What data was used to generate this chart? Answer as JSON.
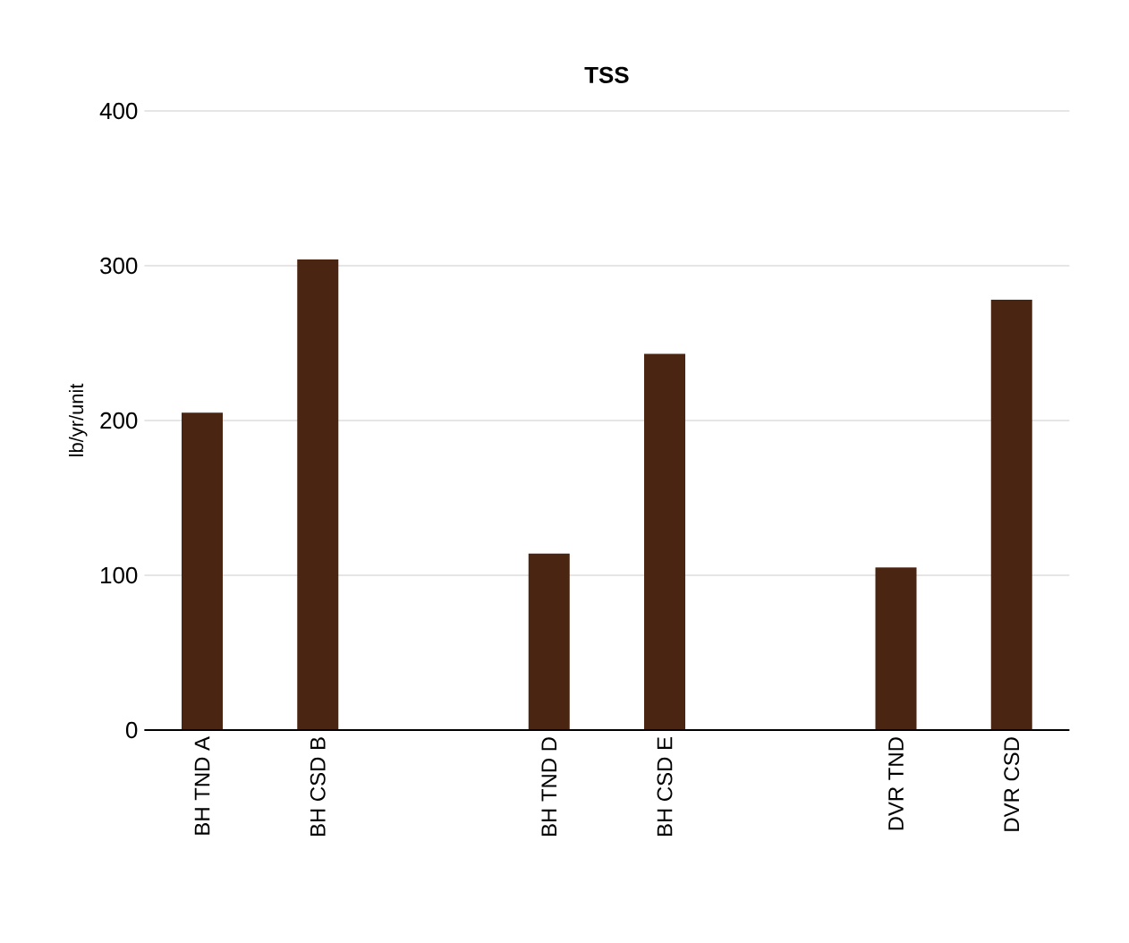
{
  "chart_data": {
    "type": "bar",
    "title": "**TSS**",
    "ylabel": "lb/yr/unit",
    "categories": [
      "BH TND A",
      "BH CSD B",
      null,
      "BH TND D",
      "BH CSD E",
      null,
      "DVR TND",
      "DVR CSD"
    ],
    "values": [
      205,
      304,
      null,
      114,
      243,
      null,
      105,
      278
    ],
    "color": "#4a2511",
    "ylim": [
      0,
      400
    ],
    "yticks": [
      0,
      100,
      200,
      300,
      400
    ],
    "grid": "y"
  }
}
